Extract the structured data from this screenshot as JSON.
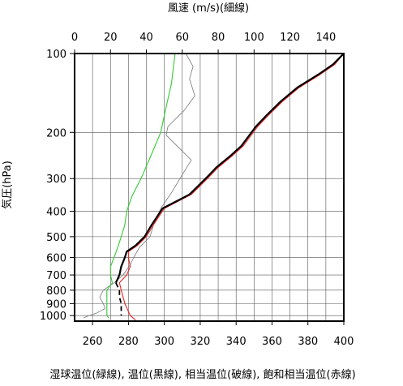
{
  "chart_data": {
    "type": "line",
    "title": "",
    "top_axis_label": "風速 (m/s)(細線)",
    "ylabel": "気圧(hPa)",
    "xlabel": "湿球温位(緑線), 温位(黒線), 相当温位(破線), 飽和相当温位(赤線)",
    "y_scale": "log",
    "y_range_hpa": [
      1050,
      100
    ],
    "y_ticks": [
      100,
      200,
      300,
      400,
      500,
      600,
      700,
      800,
      900,
      1000
    ],
    "x_bottom_range": [
      250,
      400
    ],
    "x_bottom_ticks": [
      260,
      280,
      300,
      320,
      340,
      360,
      380,
      400
    ],
    "x_top_range": [
      0,
      150
    ],
    "x_top_ticks": [
      0,
      20,
      40,
      60,
      80,
      100,
      120,
      140
    ],
    "grid": true,
    "colors": {
      "wet_bulb_potential_temperature": "#33cc33",
      "potential_temperature": "#000000",
      "equivalent_potential_temperature": "#000000",
      "saturated_equivalent_potential_temperature": "#ee2222",
      "wind_speed": "#777777"
    },
    "series": [
      {
        "key": "wind_speed",
        "axis": "top",
        "style": "thin",
        "values": [
          [
            62,
            100
          ],
          [
            66,
            112
          ],
          [
            64,
            125
          ],
          [
            67,
            145
          ],
          [
            61,
            165
          ],
          [
            52,
            190
          ],
          [
            51,
            205
          ],
          [
            57,
            225
          ],
          [
            65,
            255
          ],
          [
            60,
            290
          ],
          [
            54,
            340
          ],
          [
            48,
            390
          ],
          [
            44,
            450
          ],
          [
            42,
            500
          ],
          [
            36,
            550
          ],
          [
            33,
            600
          ],
          [
            31,
            640
          ],
          [
            27,
            700
          ],
          [
            22,
            750
          ],
          [
            16,
            800
          ],
          [
            14,
            850
          ],
          [
            16,
            900
          ],
          [
            17,
            940
          ],
          [
            12,
            980
          ],
          [
            8,
            1000
          ],
          [
            5,
            1020
          ]
        ]
      },
      {
        "key": "wet_bulb_potential_temperature",
        "axis": "bottom",
        "style": "solid",
        "values": [
          [
            306,
            100
          ],
          [
            304,
            130
          ],
          [
            301,
            160
          ],
          [
            298,
            200
          ],
          [
            292,
            250
          ],
          [
            287,
            300
          ],
          [
            282,
            350
          ],
          [
            279,
            400
          ],
          [
            278,
            450
          ],
          [
            276,
            500
          ],
          [
            274,
            550
          ],
          [
            272,
            600
          ],
          [
            270,
            650
          ],
          [
            270,
            700
          ],
          [
            271,
            750
          ],
          [
            268,
            800
          ],
          [
            268,
            900
          ],
          [
            268,
            1000
          ],
          [
            269,
            1020
          ]
        ]
      },
      {
        "key": "saturated_equivalent_potential_temperature",
        "axis": "bottom",
        "style": "solid",
        "values": [
          [
            400,
            100
          ],
          [
            395,
            110
          ],
          [
            387,
            120
          ],
          [
            375,
            135
          ],
          [
            366,
            152
          ],
          [
            358,
            172
          ],
          [
            352,
            190
          ],
          [
            344,
            225
          ],
          [
            338,
            245
          ],
          [
            330,
            272
          ],
          [
            324,
            300
          ],
          [
            315,
            345
          ],
          [
            300,
            390
          ],
          [
            294,
            450
          ],
          [
            290,
            500
          ],
          [
            285,
            540
          ],
          [
            280,
            570
          ],
          [
            280,
            600
          ],
          [
            281,
            650
          ],
          [
            279,
            700
          ],
          [
            275,
            750
          ],
          [
            276,
            800
          ],
          [
            277,
            850
          ],
          [
            278,
            900
          ],
          [
            281,
            1000
          ],
          [
            284,
            1040
          ]
        ]
      },
      {
        "key": "potential_temperature",
        "axis": "bottom",
        "style": "solid",
        "values": [
          [
            400,
            100
          ],
          [
            394,
            110
          ],
          [
            386,
            120
          ],
          [
            374,
            135
          ],
          [
            365,
            152
          ],
          [
            357,
            172
          ],
          [
            351,
            190
          ],
          [
            343,
            225
          ],
          [
            337,
            245
          ],
          [
            329,
            272
          ],
          [
            323,
            300
          ],
          [
            314,
            345
          ],
          [
            299,
            390
          ],
          [
            293,
            450
          ],
          [
            289,
            500
          ],
          [
            284,
            540
          ],
          [
            279,
            570
          ],
          [
            278,
            600
          ],
          [
            276,
            650
          ],
          [
            275,
            700
          ],
          [
            273,
            750
          ]
        ]
      },
      {
        "key": "equivalent_potential_temperature",
        "axis": "bottom",
        "style": "dashed",
        "values": [
          [
            273,
            750
          ],
          [
            275,
            800
          ],
          [
            275,
            850
          ],
          [
            276,
            900
          ],
          [
            276,
            950
          ],
          [
            276,
            1000
          ]
        ]
      }
    ]
  }
}
